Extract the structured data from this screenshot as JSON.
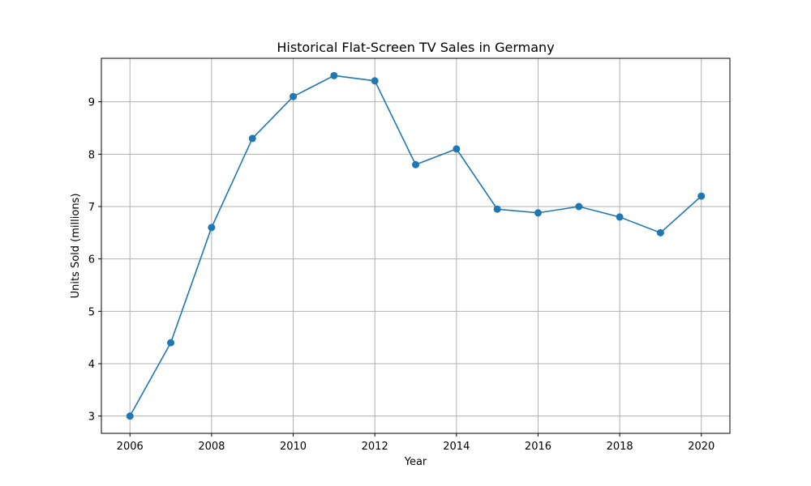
{
  "chart_data": {
    "type": "line",
    "title": "Historical Flat-Screen TV Sales in Germany",
    "xlabel": "Year",
    "ylabel": "Units Sold (millions)",
    "x": [
      2006,
      2007,
      2008,
      2009,
      2010,
      2011,
      2012,
      2013,
      2014,
      2015,
      2016,
      2017,
      2018,
      2019,
      2020
    ],
    "series": [
      {
        "values": [
          3.0,
          4.4,
          6.6,
          8.3,
          9.1,
          9.5,
          9.4,
          7.8,
          8.1,
          6.95,
          6.88,
          7.0,
          6.8,
          6.5,
          7.2
        ],
        "color": "#1f77b4",
        "marker": "circle"
      }
    ],
    "xlim": [
      2005.3,
      2020.7
    ],
    "ylim": [
      2.67,
      9.83
    ],
    "xticks": [
      "2006",
      "2008",
      "2010",
      "2012",
      "2014",
      "2016",
      "2018",
      "2020"
    ],
    "yticks": [
      "3",
      "4",
      "5",
      "6",
      "7",
      "8",
      "9"
    ],
    "grid": true,
    "legend": false
  }
}
